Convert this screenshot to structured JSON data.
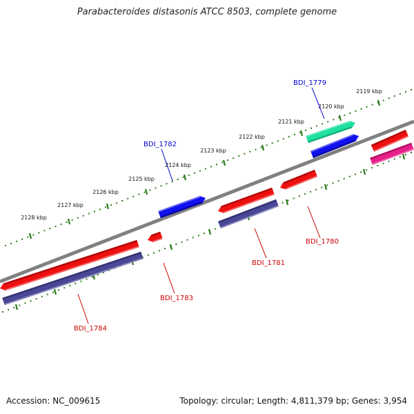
{
  "title": "Parabacteroides distasonis ATCC 8503, complete genome",
  "footer": {
    "accession": "Accession: NC_009615",
    "stats": "Topology: circular; Length: 4,811,379 bp; Genes: 3,954"
  },
  "colors": {
    "backbone": "#808080",
    "tick": "#2a7a1a",
    "label_plus": "#0000cc",
    "label_minus": "#cc0000"
  },
  "ticks": [
    {
      "label": "2119 kbp"
    },
    {
      "label": "2120 kbp"
    },
    {
      "label": "2121 kbp"
    },
    {
      "label": "2122 kbp"
    },
    {
      "label": "2123 kbp"
    },
    {
      "label": "2124 kbp"
    },
    {
      "label": "2125 kbp"
    },
    {
      "label": "2126 kbp"
    },
    {
      "label": "2127 kbp"
    },
    {
      "label": "2128 kbp"
    }
  ],
  "genes": [
    {
      "label": "BDI_1779",
      "strand": "plus",
      "color": "#1fe0a0"
    },
    {
      "label": "BDI_1782",
      "strand": "plus",
      "color": "#1010ee"
    },
    {
      "label": "BDI_1780",
      "strand": "minus",
      "color": "#ee1010"
    },
    {
      "label": "BDI_1781",
      "strand": "minus",
      "color": "#ee1010"
    },
    {
      "label": "BDI_1783",
      "strand": "minus",
      "color": "#ee1010"
    },
    {
      "label": "BDI_1784",
      "strand": "minus",
      "color": "#ee1010"
    }
  ]
}
